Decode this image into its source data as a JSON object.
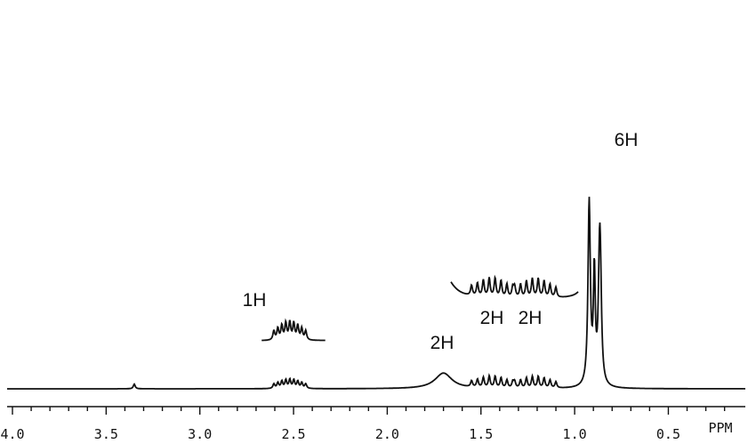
{
  "chart_data": {
    "type": "line",
    "xlabel": "PPM",
    "xlim": [
      4.0,
      0.0
    ],
    "x_reversed": true,
    "x_ticks_major": [
      4.0,
      3.5,
      3.0,
      2.5,
      2.0,
      1.5,
      1.0,
      0.5
    ],
    "x_tick_labels": [
      "4.0",
      "3.5",
      "3.0",
      "2.5",
      "2.0",
      "1.5",
      "1.0",
      "0.5"
    ],
    "x_tick_minor_step": 0.1,
    "grid": false,
    "legend": "none",
    "color": "#111111",
    "signals": [
      {
        "center": 0.9,
        "shape": "doublet",
        "j_ppm": 0.065,
        "height": 0.47,
        "label": "6H"
      },
      {
        "center": 1.21,
        "shape": "multiplet",
        "height": 0.32,
        "label": "2H"
      },
      {
        "center": 1.44,
        "shape": "multiplet",
        "height": 0.32,
        "label": "2H"
      },
      {
        "center": 1.7,
        "shape": "broad",
        "height": 0.23,
        "label": "2H"
      },
      {
        "center": 2.52,
        "shape": "multiplet",
        "height": 0.24,
        "label": "1H"
      },
      {
        "center": 3.35,
        "shape": "singlet",
        "height": 0.05,
        "label": ""
      }
    ],
    "insets": [
      {
        "of_signal": "1H",
        "x_range": [
          2.67,
          2.33
        ],
        "gain": 4.0
      },
      {
        "of_signal": "2H+2H",
        "x_range": [
          1.66,
          0.98
        ],
        "gain": 3.3
      }
    ]
  }
}
